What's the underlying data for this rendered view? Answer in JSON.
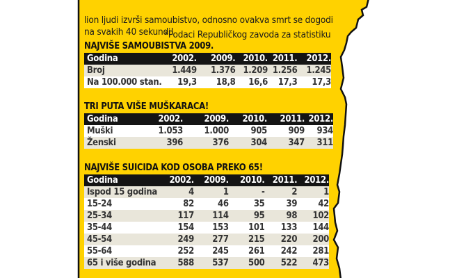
{
  "intro": {
    "lines": [
      "lion ljudi izvrši samoubistvo, odnosno ovakva smrt se dogodi",
      "na svakih 40 sekundi!"
    ],
    "footnote": "*Podaci Republičkog zavoda za statistiku"
  },
  "colors": {
    "panel": "#FFD200",
    "header": "#141414",
    "row_alt": "#e9e6da"
  },
  "tables": [
    {
      "title": "NAJVIŠE SAMOUBISTVA 2009.",
      "header": [
        "Godina",
        "2002.",
        "2009.",
        "2010.",
        "2011.",
        "2012."
      ],
      "rows": [
        [
          "Broj",
          "1.449",
          "1.376",
          "1.209",
          "1.256",
          "1.245"
        ],
        [
          "Na 100.000 stan.",
          "19,3",
          "18,8",
          "16,6",
          "17,3",
          "17,3"
        ]
      ]
    },
    {
      "title": "TRI PUTA VIŠE MUŠKARACA!",
      "header": [
        "Godina",
        "2002.",
        "2009.",
        "2010.",
        "2011.",
        "2012."
      ],
      "rows": [
        [
          "Muški",
          "1.053",
          "1.000",
          "905",
          "909",
          "934"
        ],
        [
          "Ženski",
          "396",
          "376",
          "304",
          "347",
          "311"
        ]
      ]
    },
    {
      "title": "NAJVIŠE SUICIDA KOD OSOBA PREKO 65!",
      "header": [
        "Godina",
        "2002.",
        "2009.",
        "2010.",
        "2011.",
        "2012."
      ],
      "rows": [
        [
          "Ispod 15 godina",
          "4",
          "1",
          "-",
          "2",
          "1"
        ],
        [
          "15-24",
          "82",
          "46",
          "35",
          "39",
          "42"
        ],
        [
          "25-34",
          "117",
          "114",
          "95",
          "98",
          "102"
        ],
        [
          "35-44",
          "154",
          "153",
          "101",
          "133",
          "144"
        ],
        [
          "45-54",
          "249",
          "277",
          "215",
          "220",
          "200"
        ],
        [
          "55-64",
          "252",
          "245",
          "261",
          "242",
          "281"
        ],
        [
          "65 i više godina",
          "588",
          "537",
          "500",
          "522",
          "473"
        ]
      ]
    }
  ]
}
